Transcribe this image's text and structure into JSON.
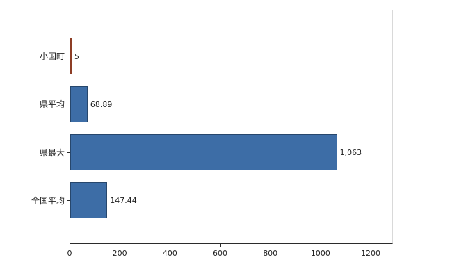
{
  "chart": {
    "background": "#ffffff",
    "axis_color": "#2b2b2b",
    "frame_color": "#d9d9d9",
    "default_bar_color": "#3d6da6",
    "highlight_bar_color": "#d95f39"
  },
  "chart_data": {
    "type": "bar",
    "orientation": "horizontal",
    "title": "",
    "xlabel": "",
    "ylabel": "",
    "categories": [
      "小国町",
      "県平均",
      "県最大",
      "全国平均"
    ],
    "values": [
      5,
      68.89,
      1063,
      147.44
    ],
    "value_labels": [
      "5",
      "68.89",
      "1,063",
      "147.44"
    ],
    "bar_colors": [
      "#d95f39",
      "#3d6da6",
      "#3d6da6",
      "#3d6da6"
    ],
    "xlim": [
      0,
      1283
    ],
    "x_ticks": [
      0,
      200,
      400,
      600,
      800,
      1000,
      1200
    ],
    "x_tick_labels": [
      "0",
      "200",
      "400",
      "600",
      "800",
      "1000",
      "1200"
    ],
    "grid": false,
    "legend": false
  }
}
